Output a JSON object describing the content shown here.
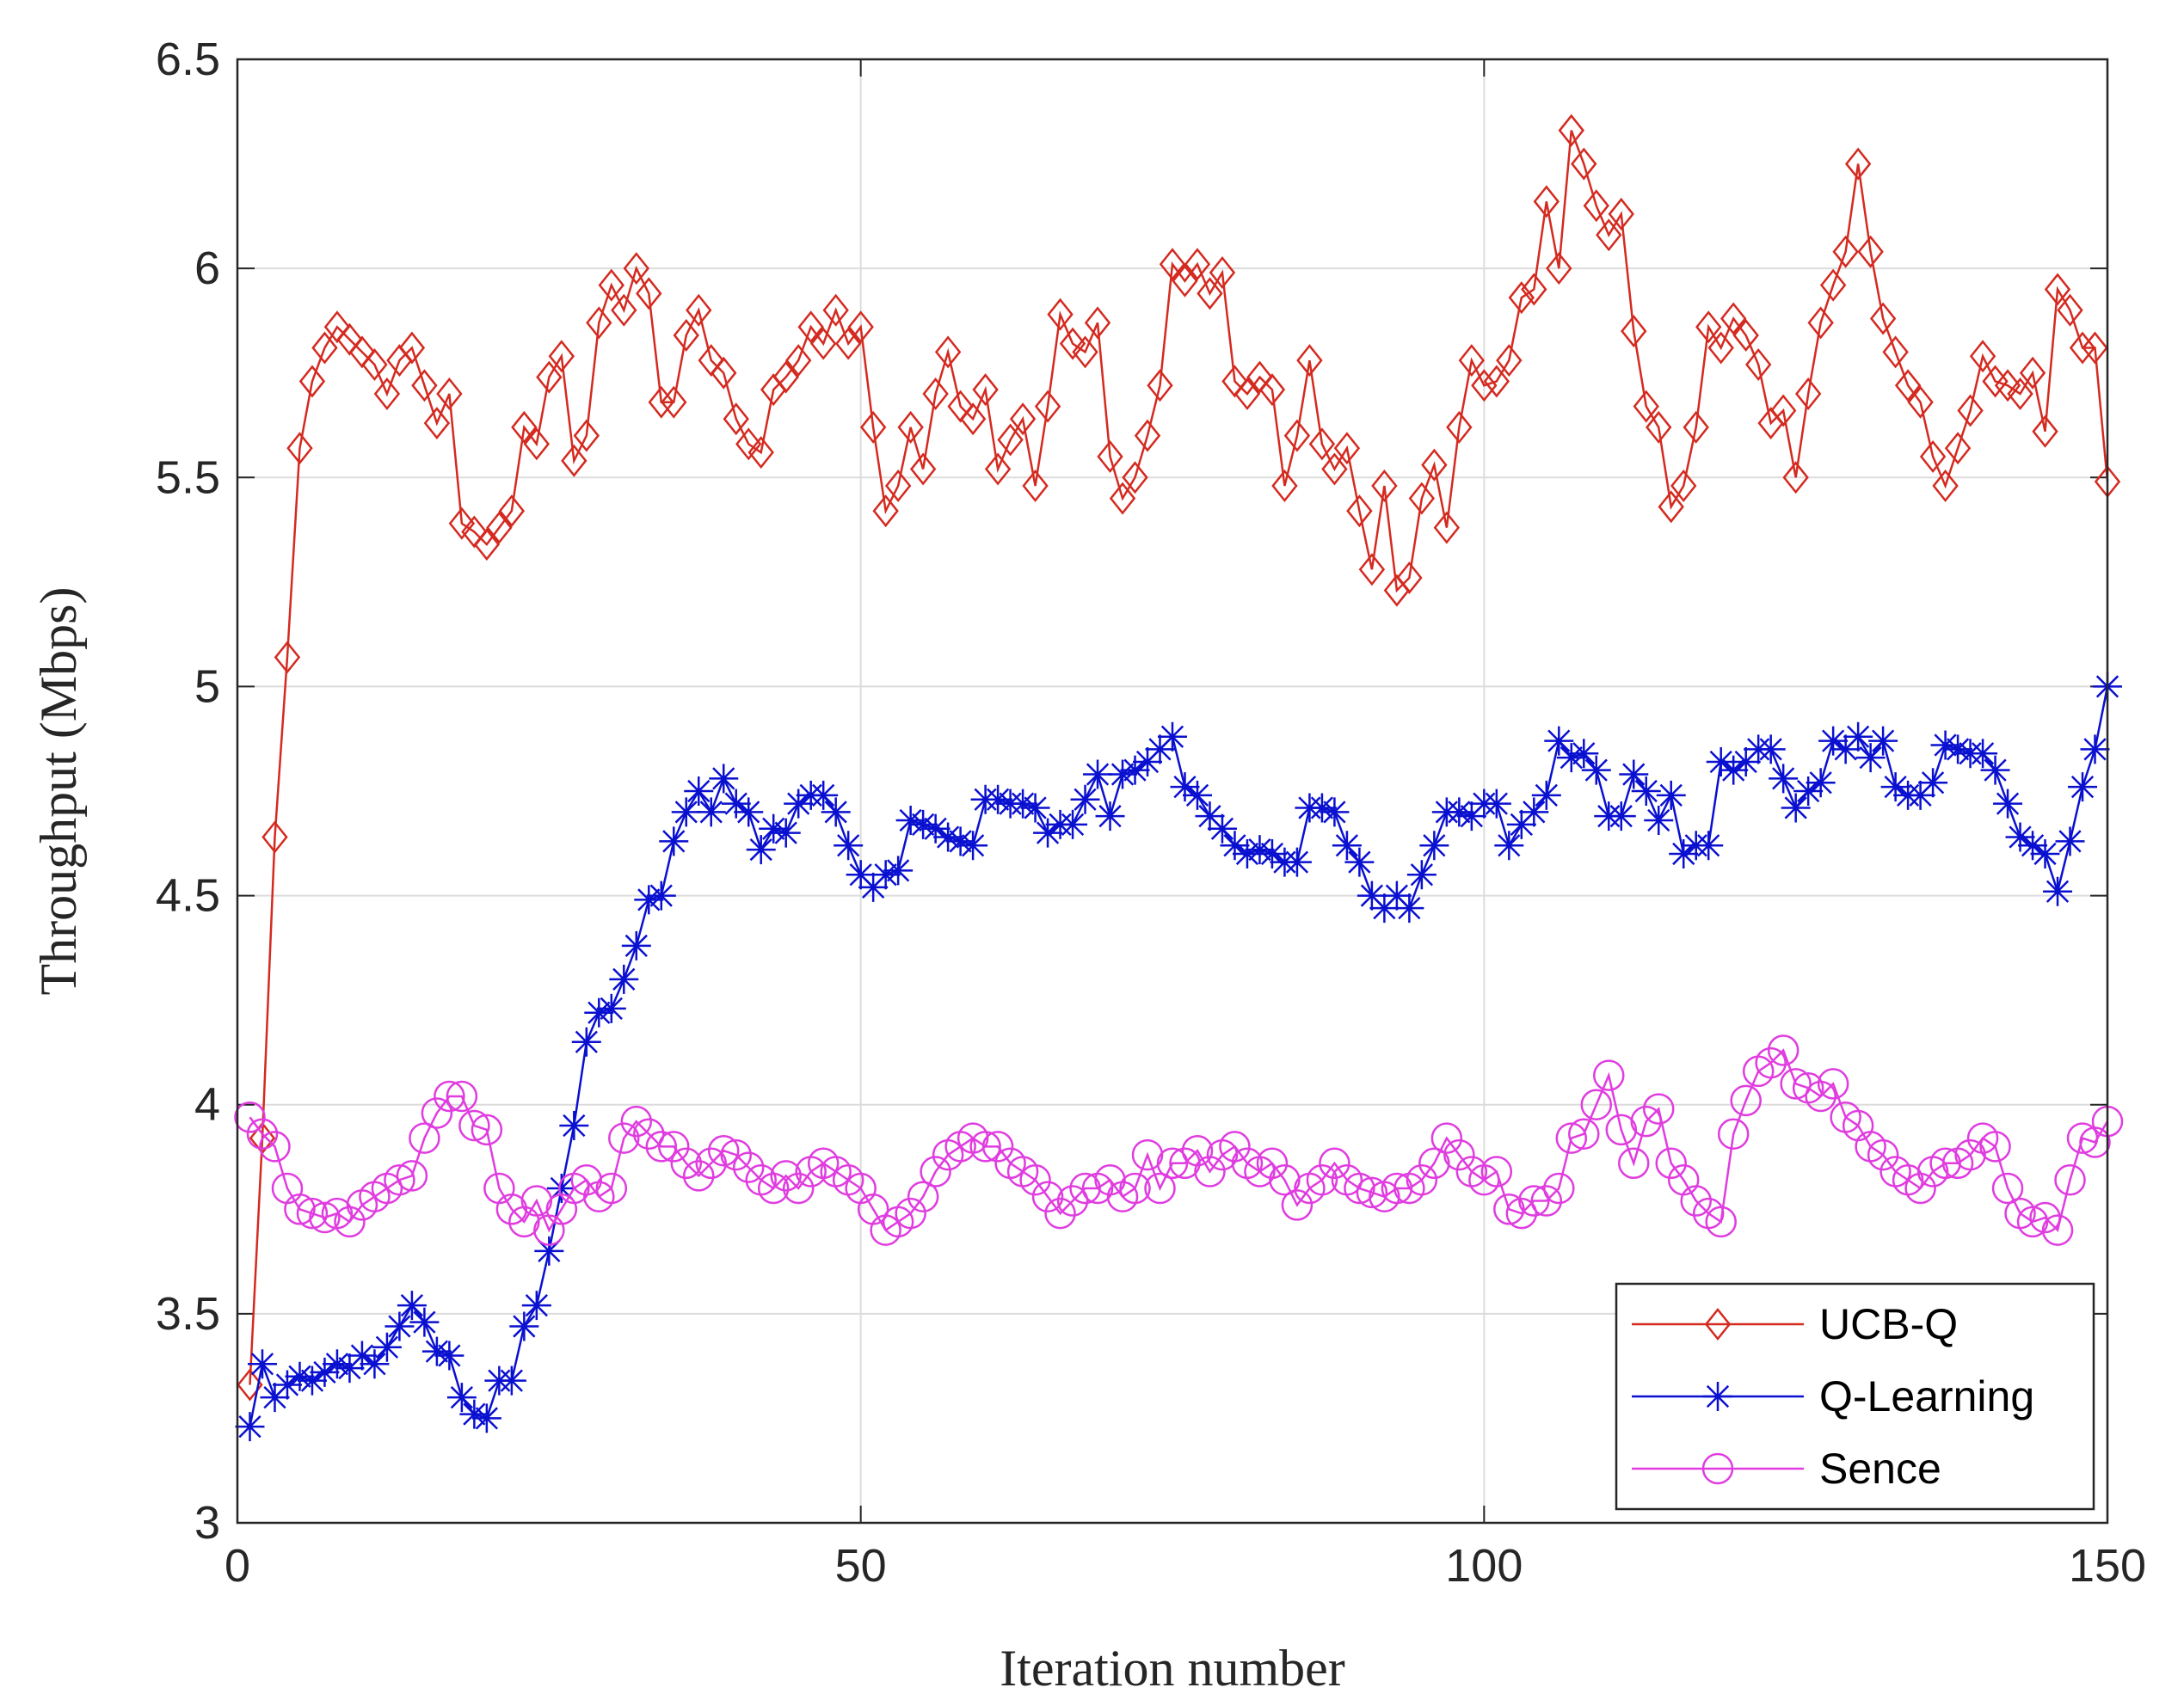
{
  "chart_data": {
    "type": "line",
    "xlabel": "Iteration number",
    "ylabel": "Throughput (Mbps)",
    "x": [
      1,
      2,
      3,
      4,
      5,
      6,
      7,
      8,
      9,
      10,
      11,
      12,
      13,
      14,
      15,
      16,
      17,
      18,
      19,
      20,
      21,
      22,
      23,
      24,
      25,
      26,
      27,
      28,
      29,
      30,
      31,
      32,
      33,
      34,
      35,
      36,
      37,
      38,
      39,
      40,
      41,
      42,
      43,
      44,
      45,
      46,
      47,
      48,
      49,
      50,
      51,
      52,
      53,
      54,
      55,
      56,
      57,
      58,
      59,
      60,
      61,
      62,
      63,
      64,
      65,
      66,
      67,
      68,
      69,
      70,
      71,
      72,
      73,
      74,
      75,
      76,
      77,
      78,
      79,
      80,
      81,
      82,
      83,
      84,
      85,
      86,
      87,
      88,
      89,
      90,
      91,
      92,
      93,
      94,
      95,
      96,
      97,
      98,
      99,
      100,
      101,
      102,
      103,
      104,
      105,
      106,
      107,
      108,
      109,
      110,
      111,
      112,
      113,
      114,
      115,
      116,
      117,
      118,
      119,
      120,
      121,
      122,
      123,
      124,
      125,
      126,
      127,
      128,
      129,
      130,
      131,
      132,
      133,
      134,
      135,
      136,
      137,
      138,
      139,
      140,
      141,
      142,
      143,
      144,
      145,
      146,
      147,
      148,
      149,
      150
    ],
    "series": [
      {
        "name": "UCB-Q",
        "color": "#d42a20",
        "marker": "diamond",
        "values": [
          3.33,
          3.92,
          4.64,
          5.07,
          5.57,
          5.73,
          5.81,
          5.86,
          5.83,
          5.8,
          5.77,
          5.7,
          5.78,
          5.81,
          5.72,
          5.63,
          5.7,
          5.39,
          5.37,
          5.34,
          5.38,
          5.42,
          5.62,
          5.58,
          5.74,
          5.79,
          5.54,
          5.6,
          5.87,
          5.96,
          5.9,
          6.0,
          5.94,
          5.68,
          5.68,
          5.84,
          5.9,
          5.78,
          5.75,
          5.64,
          5.58,
          5.56,
          5.71,
          5.74,
          5.78,
          5.86,
          5.82,
          5.9,
          5.82,
          5.86,
          5.62,
          5.42,
          5.48,
          5.62,
          5.52,
          5.7,
          5.8,
          5.67,
          5.64,
          5.71,
          5.52,
          5.59,
          5.64,
          5.48,
          5.67,
          5.89,
          5.82,
          5.8,
          5.87,
          5.55,
          5.45,
          5.5,
          5.6,
          5.72,
          6.01,
          5.97,
          6.01,
          5.94,
          5.99,
          5.73,
          5.7,
          5.74,
          5.71,
          5.48,
          5.6,
          5.78,
          5.58,
          5.52,
          5.57,
          5.42,
          5.28,
          5.48,
          5.23,
          5.26,
          5.45,
          5.53,
          5.38,
          5.62,
          5.78,
          5.72,
          5.73,
          5.78,
          5.93,
          5.95,
          6.16,
          6.0,
          6.33,
          6.25,
          6.15,
          6.08,
          6.13,
          5.85,
          5.67,
          5.62,
          5.43,
          5.48,
          5.62,
          5.86,
          5.81,
          5.88,
          5.84,
          5.77,
          5.63,
          5.66,
          5.5,
          5.7,
          5.87,
          5.96,
          6.04,
          6.25,
          6.04,
          5.88,
          5.8,
          5.72,
          5.68,
          5.55,
          5.48,
          5.57,
          5.66,
          5.79,
          5.73,
          5.72,
          5.7,
          5.75,
          5.61,
          5.95,
          5.9,
          5.81,
          5.81,
          5.49
        ]
      },
      {
        "name": "Q-Learning",
        "color": "#0a10d0",
        "marker": "asterisk",
        "values": [
          3.23,
          3.38,
          3.3,
          3.33,
          3.35,
          3.34,
          3.36,
          3.38,
          3.37,
          3.4,
          3.38,
          3.42,
          3.47,
          3.52,
          3.48,
          3.41,
          3.4,
          3.3,
          3.26,
          3.25,
          3.34,
          3.34,
          3.47,
          3.52,
          3.65,
          3.8,
          3.95,
          4.15,
          4.22,
          4.23,
          4.3,
          4.38,
          4.49,
          4.5,
          4.63,
          4.7,
          4.75,
          4.7,
          4.78,
          4.72,
          4.7,
          4.61,
          4.66,
          4.65,
          4.72,
          4.74,
          4.74,
          4.7,
          4.62,
          4.55,
          4.52,
          4.55,
          4.56,
          4.68,
          4.67,
          4.66,
          4.64,
          4.63,
          4.62,
          4.73,
          4.73,
          4.72,
          4.72,
          4.71,
          4.65,
          4.67,
          4.67,
          4.73,
          4.79,
          4.69,
          4.79,
          4.8,
          4.82,
          4.85,
          4.88,
          4.76,
          4.74,
          4.69,
          4.66,
          4.62,
          4.6,
          4.61,
          4.6,
          4.58,
          4.58,
          4.71,
          4.71,
          4.7,
          4.62,
          4.58,
          4.5,
          4.47,
          4.5,
          4.47,
          4.55,
          4.62,
          4.7,
          4.7,
          4.69,
          4.72,
          4.72,
          4.62,
          4.67,
          4.7,
          4.74,
          4.87,
          4.83,
          4.84,
          4.8,
          4.69,
          4.69,
          4.79,
          4.75,
          4.68,
          4.74,
          4.6,
          4.62,
          4.62,
          4.82,
          4.8,
          4.82,
          4.85,
          4.85,
          4.78,
          4.71,
          4.75,
          4.77,
          4.87,
          4.85,
          4.88,
          4.83,
          4.87,
          4.76,
          4.74,
          4.74,
          4.77,
          4.86,
          4.85,
          4.84,
          4.84,
          4.8,
          4.72,
          4.64,
          4.62,
          4.6,
          4.51,
          4.63,
          4.76,
          4.85,
          5.0
        ]
      },
      {
        "name": "Sence",
        "color": "#e03ce0",
        "marker": "circle",
        "values": [
          3.97,
          3.93,
          3.9,
          3.8,
          3.75,
          3.74,
          3.73,
          3.74,
          3.72,
          3.76,
          3.78,
          3.8,
          3.82,
          3.83,
          3.92,
          3.98,
          4.02,
          4.02,
          3.95,
          3.94,
          3.8,
          3.75,
          3.72,
          3.77,
          3.7,
          3.75,
          3.8,
          3.82,
          3.78,
          3.8,
          3.92,
          3.96,
          3.93,
          3.9,
          3.9,
          3.86,
          3.83,
          3.86,
          3.89,
          3.88,
          3.85,
          3.82,
          3.8,
          3.83,
          3.8,
          3.84,
          3.86,
          3.84,
          3.82,
          3.8,
          3.75,
          3.7,
          3.72,
          3.74,
          3.78,
          3.84,
          3.88,
          3.9,
          3.92,
          3.9,
          3.9,
          3.86,
          3.84,
          3.82,
          3.78,
          3.74,
          3.77,
          3.8,
          3.8,
          3.82,
          3.78,
          3.8,
          3.88,
          3.8,
          3.86,
          3.86,
          3.89,
          3.84,
          3.88,
          3.9,
          3.86,
          3.84,
          3.86,
          3.82,
          3.76,
          3.8,
          3.82,
          3.86,
          3.82,
          3.8,
          3.79,
          3.78,
          3.8,
          3.8,
          3.82,
          3.86,
          3.92,
          3.88,
          3.84,
          3.82,
          3.84,
          3.75,
          3.74,
          3.77,
          3.77,
          3.8,
          3.92,
          3.93,
          4.0,
          4.07,
          3.94,
          3.86,
          3.96,
          3.99,
          3.86,
          3.82,
          3.77,
          3.74,
          3.72,
          3.93,
          4.01,
          4.08,
          4.1,
          4.13,
          4.05,
          4.04,
          4.02,
          4.05,
          3.97,
          3.95,
          3.9,
          3.88,
          3.84,
          3.82,
          3.8,
          3.84,
          3.86,
          3.86,
          3.88,
          3.92,
          3.9,
          3.8,
          3.74,
          3.72,
          3.73,
          3.7,
          3.82,
          3.92,
          3.91,
          3.96
        ]
      }
    ],
    "xlim": [
      0,
      150
    ],
    "xticks": [
      0,
      50,
      100,
      150
    ],
    "ylim": [
      3,
      6.5
    ],
    "yticks": [
      3,
      3.5,
      4,
      4.5,
      5,
      5.5,
      6,
      6.5
    ],
    "grid": true,
    "legend": "lower right"
  }
}
